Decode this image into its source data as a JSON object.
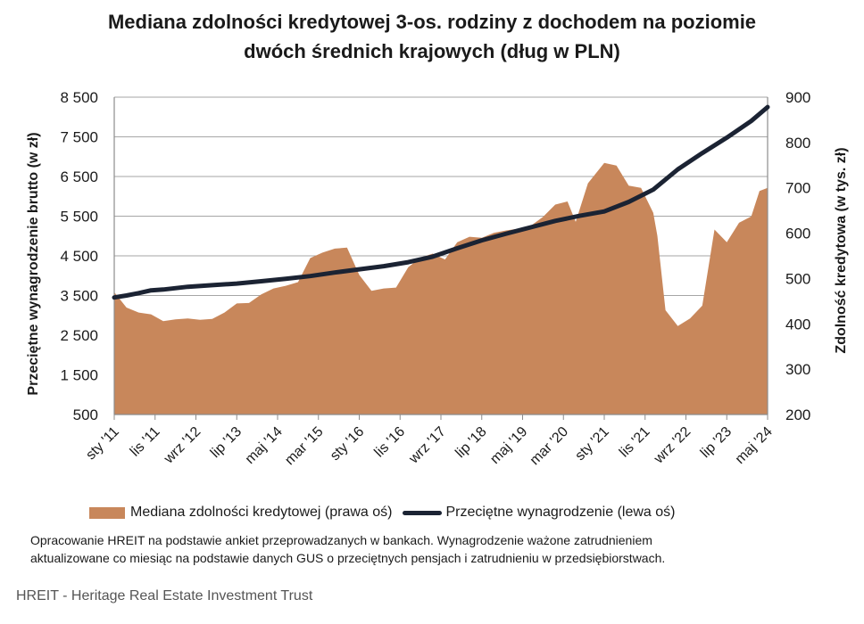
{
  "chart_data": {
    "type": "area+line",
    "title": [
      "Mediana zdolności kredytowej 3-os. rodziny z dochodem na poziomie",
      "dwóch średnich krajowych (dług w PLN)"
    ],
    "y_left_label": "Przeciętne wynagrodzenie brutto (w zł)",
    "y_right_label": "Zdolność kredytowa (w tys. zł)",
    "y_left_ticks": [
      "8 500",
      "7 500",
      "6 500",
      "5 500",
      "4 500",
      "3 500",
      "2 500",
      "1 500",
      "500"
    ],
    "y_right_ticks": [
      "900",
      "800",
      "700",
      "600",
      "500",
      "400",
      "300",
      "200"
    ],
    "ylim_left": [
      500,
      8500
    ],
    "ylim_right": [
      200,
      900
    ],
    "x_range": [
      "2011-01",
      "2024-05"
    ],
    "x_ticks": [
      {
        "label": "sty '11",
        "date": "2011-01"
      },
      {
        "label": "lis '11",
        "date": "2011-11"
      },
      {
        "label": "wrz '12",
        "date": "2012-09"
      },
      {
        "label": "lip '13",
        "date": "2013-07"
      },
      {
        "label": "maj '14",
        "date": "2014-05"
      },
      {
        "label": "mar '15",
        "date": "2015-03"
      },
      {
        "label": "sty '16",
        "date": "2016-01"
      },
      {
        "label": "lis '16",
        "date": "2016-11"
      },
      {
        "label": "wrz '17",
        "date": "2017-09"
      },
      {
        "label": "lip '18",
        "date": "2018-07"
      },
      {
        "label": "maj '19",
        "date": "2019-05"
      },
      {
        "label": "mar '20",
        "date": "2020-03"
      },
      {
        "label": "sty '21",
        "date": "2021-01"
      },
      {
        "label": "lis '21",
        "date": "2021-11"
      },
      {
        "label": "wrz '22",
        "date": "2022-09"
      },
      {
        "label": "lip '23",
        "date": "2023-07"
      },
      {
        "label": "maj '24",
        "date": "2024-05"
      }
    ],
    "grid": true,
    "series": [
      {
        "name": "Mediana zdolności kredytowej (prawa oś)",
        "kind": "area",
        "axis": "right",
        "color": "#c8875b",
        "points": [
          {
            "x": "2011-01",
            "y": 470
          },
          {
            "x": "2011-04",
            "y": 436
          },
          {
            "x": "2011-07",
            "y": 425
          },
          {
            "x": "2011-10",
            "y": 421
          },
          {
            "x": "2012-01",
            "y": 406
          },
          {
            "x": "2012-04",
            "y": 410
          },
          {
            "x": "2012-07",
            "y": 412
          },
          {
            "x": "2012-10",
            "y": 409
          },
          {
            "x": "2013-01",
            "y": 411
          },
          {
            "x": "2013-04",
            "y": 425
          },
          {
            "x": "2013-07",
            "y": 445
          },
          {
            "x": "2013-10",
            "y": 446
          },
          {
            "x": "2014-01",
            "y": 465
          },
          {
            "x": "2014-04",
            "y": 478
          },
          {
            "x": "2014-07",
            "y": 484
          },
          {
            "x": "2014-10",
            "y": 492
          },
          {
            "x": "2015-01",
            "y": 545
          },
          {
            "x": "2015-04",
            "y": 557
          },
          {
            "x": "2015-07",
            "y": 566
          },
          {
            "x": "2015-10",
            "y": 568
          },
          {
            "x": "2016-01",
            "y": 508
          },
          {
            "x": "2016-04",
            "y": 473
          },
          {
            "x": "2016-07",
            "y": 478
          },
          {
            "x": "2016-10",
            "y": 480
          },
          {
            "x": "2017-01",
            "y": 525
          },
          {
            "x": "2017-04",
            "y": 546
          },
          {
            "x": "2017-07",
            "y": 555
          },
          {
            "x": "2017-10",
            "y": 542
          },
          {
            "x": "2018-01",
            "y": 580
          },
          {
            "x": "2018-04",
            "y": 592
          },
          {
            "x": "2018-07",
            "y": 590
          },
          {
            "x": "2018-10",
            "y": 601
          },
          {
            "x": "2019-01",
            "y": 606
          },
          {
            "x": "2019-04",
            "y": 610
          },
          {
            "x": "2019-07",
            "y": 616
          },
          {
            "x": "2019-10",
            "y": 636
          },
          {
            "x": "2020-01",
            "y": 663
          },
          {
            "x": "2020-04",
            "y": 670
          },
          {
            "x": "2020-06",
            "y": 625
          },
          {
            "x": "2020-09",
            "y": 710
          },
          {
            "x": "2021-01",
            "y": 755
          },
          {
            "x": "2021-04",
            "y": 749
          },
          {
            "x": "2021-07",
            "y": 705
          },
          {
            "x": "2021-10",
            "y": 700
          },
          {
            "x": "2022-01",
            "y": 645
          },
          {
            "x": "2022-02",
            "y": 594
          },
          {
            "x": "2022-04",
            "y": 430
          },
          {
            "x": "2022-07",
            "y": 395
          },
          {
            "x": "2022-10",
            "y": 412
          },
          {
            "x": "2023-01",
            "y": 440
          },
          {
            "x": "2023-04",
            "y": 608
          },
          {
            "x": "2023-07",
            "y": 580
          },
          {
            "x": "2023-10",
            "y": 623
          },
          {
            "x": "2024-01",
            "y": 637
          },
          {
            "x": "2024-03",
            "y": 693
          },
          {
            "x": "2024-05",
            "y": 700
          }
        ]
      },
      {
        "name": "Przeciętne wynagrodzenie (lewa oś)",
        "kind": "line",
        "axis": "left",
        "color": "#1b2333",
        "points": [
          {
            "x": "2011-01",
            "y": 3450
          },
          {
            "x": "2011-04",
            "y": 3500
          },
          {
            "x": "2011-07",
            "y": 3560
          },
          {
            "x": "2011-10",
            "y": 3630
          },
          {
            "x": "2012-01",
            "y": 3650
          },
          {
            "x": "2012-07",
            "y": 3720
          },
          {
            "x": "2013-01",
            "y": 3760
          },
          {
            "x": "2013-07",
            "y": 3800
          },
          {
            "x": "2014-01",
            "y": 3860
          },
          {
            "x": "2014-07",
            "y": 3920
          },
          {
            "x": "2015-01",
            "y": 3990
          },
          {
            "x": "2015-07",
            "y": 4080
          },
          {
            "x": "2016-01",
            "y": 4160
          },
          {
            "x": "2016-07",
            "y": 4240
          },
          {
            "x": "2017-01",
            "y": 4340
          },
          {
            "x": "2017-07",
            "y": 4480
          },
          {
            "x": "2018-01",
            "y": 4690
          },
          {
            "x": "2018-07",
            "y": 4890
          },
          {
            "x": "2019-01",
            "y": 5060
          },
          {
            "x": "2019-07",
            "y": 5220
          },
          {
            "x": "2020-01",
            "y": 5380
          },
          {
            "x": "2020-07",
            "y": 5510
          },
          {
            "x": "2021-01",
            "y": 5620
          },
          {
            "x": "2021-07",
            "y": 5860
          },
          {
            "x": "2022-01",
            "y": 6170
          },
          {
            "x": "2022-07",
            "y": 6680
          },
          {
            "x": "2023-01",
            "y": 7090
          },
          {
            "x": "2023-07",
            "y": 7480
          },
          {
            "x": "2024-01",
            "y": 7900
          },
          {
            "x": "2024-05",
            "y": 8250
          }
        ]
      }
    ]
  },
  "footnote": [
    "Opracowanie HREIT na podstawie ankiet przeprowadzanych w bankach. Wynagrodzenie ważone zatrudnieniem",
    "aktualizowane co miesiąc na podstawie danych GUS o przeciętnych pensjach i zatrudnieniu w przedsiębiorstwach."
  ],
  "source": "HREIT - Heritage Real Estate Investment Trust"
}
